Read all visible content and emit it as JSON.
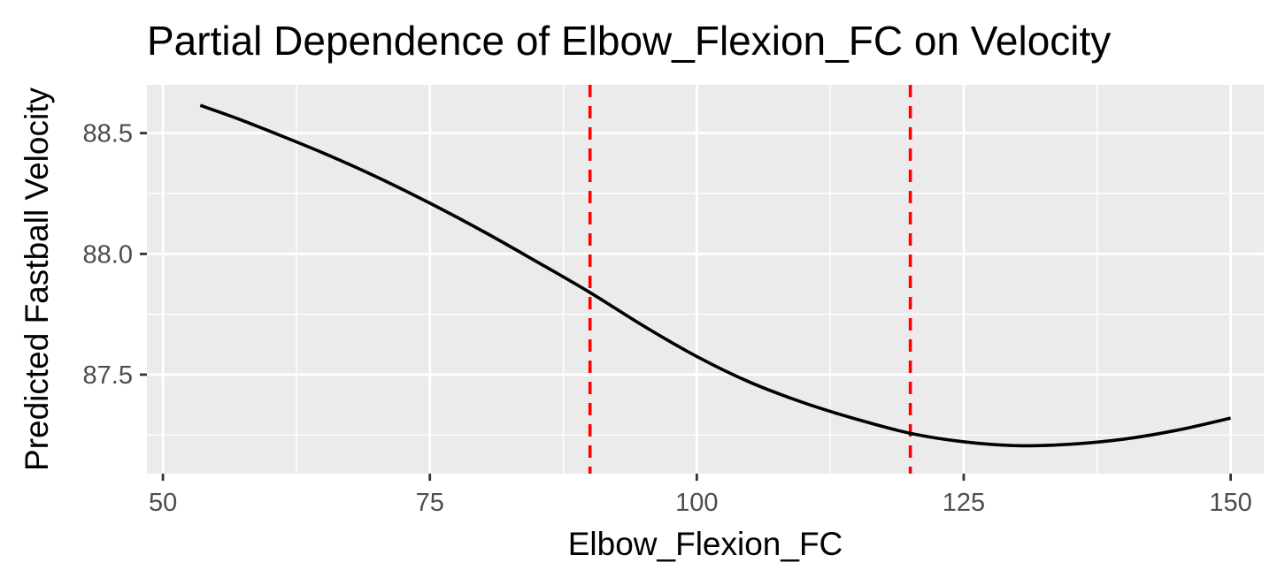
{
  "chart_data": {
    "type": "line",
    "title": "Partial Dependence of Elbow_Flexion_FC on Velocity",
    "xlabel": "Elbow_Flexion_FC",
    "ylabel": "Predicted Fastball Velocity",
    "xlim": [
      48.5,
      153.1
    ],
    "ylim": [
      87.09,
      88.7
    ],
    "x_ticks": [
      50,
      75,
      100,
      125,
      150
    ],
    "x_tick_labels": [
      "50",
      "75",
      "100",
      "125",
      "150"
    ],
    "y_ticks": [
      87.5,
      88.0,
      88.5
    ],
    "y_tick_labels": [
      "87.5",
      "88.0",
      "88.5"
    ],
    "grid": true,
    "series": [
      {
        "x": [
          53.5,
          57,
          60,
          65,
          70,
          75,
          80,
          85,
          90,
          95,
          100,
          105,
          110,
          115,
          120,
          125,
          130,
          135,
          140,
          145,
          150
        ],
        "y": [
          88.615,
          88.56,
          88.508,
          88.418,
          88.319,
          88.21,
          88.093,
          87.968,
          87.84,
          87.702,
          87.575,
          87.468,
          87.384,
          87.315,
          87.257,
          87.222,
          87.206,
          87.212,
          87.233,
          87.27,
          87.32
        ]
      }
    ],
    "reference_lines": [
      {
        "axis": "x",
        "value": 90,
        "style": "dashed",
        "color": "#ff0000"
      },
      {
        "axis": "x",
        "value": 120,
        "style": "dashed",
        "color": "#ff0000"
      }
    ],
    "colors": {
      "panel": "#ebebeb",
      "grid": "#ffffff",
      "line": "#000000",
      "reference": "#ff0000",
      "tick_text": "#4d4d4d"
    }
  }
}
